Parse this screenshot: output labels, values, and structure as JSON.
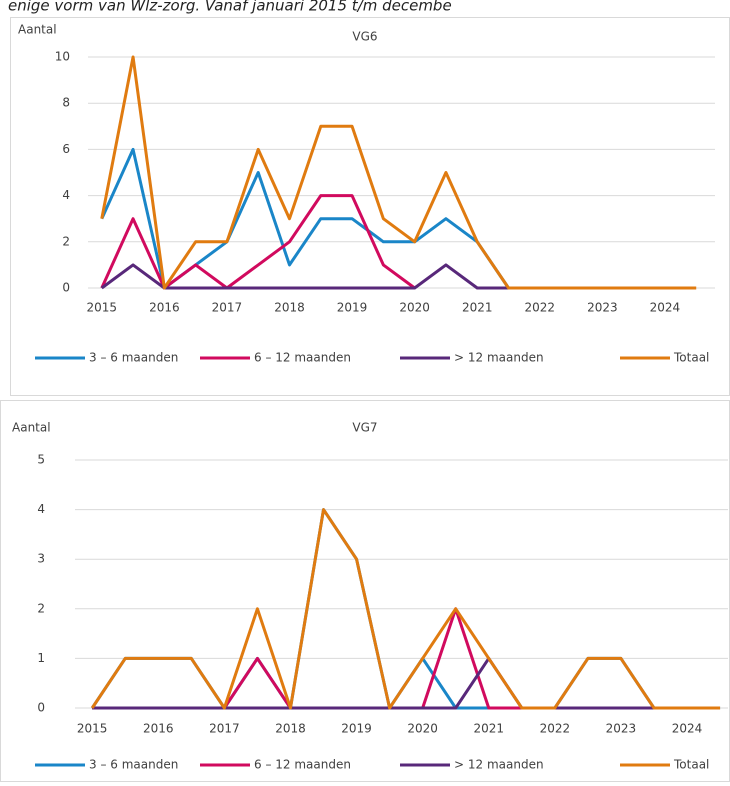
{
  "caption": "enige vorm van Wlz-zorg. Vanaf januari 2015 t/m decembe",
  "chart_data": [
    {
      "type": "line",
      "title": "VG6",
      "y_label": "Aantal",
      "x": [
        2015,
        2015.5,
        2016,
        2016.5,
        2017,
        2017.5,
        2018,
        2018.5,
        2019,
        2019.5,
        2020,
        2020.5,
        2021,
        2021.5,
        2022,
        2022.5,
        2023,
        2023.5,
        2024,
        2024.5
      ],
      "xlim": [
        2014.78,
        2024.8
      ],
      "xticks": [
        2015,
        2016,
        2017,
        2018,
        2019,
        2020,
        2021,
        2022,
        2023,
        2024
      ],
      "ylim": [
        0,
        10
      ],
      "yticks": [
        0,
        2,
        4,
        6,
        8,
        10
      ],
      "grid": true,
      "series": [
        {
          "name": "3 – 6 maanden",
          "color": "#1a86c8",
          "values": [
            3,
            6,
            0,
            1,
            2,
            5,
            1,
            3,
            3,
            2,
            2,
            3,
            2,
            0,
            null,
            null,
            null,
            null,
            null,
            null
          ]
        },
        {
          "name": "6 – 12 maanden",
          "color": "#d10a5e",
          "values": [
            0,
            3,
            0,
            1,
            0,
            1,
            2,
            4,
            4,
            1,
            0,
            null,
            null,
            null,
            null,
            null,
            null,
            null,
            null,
            null
          ]
        },
        {
          "name": "> 12 maanden",
          "color": "#58287a",
          "values": [
            0,
            1,
            0,
            0,
            0,
            0,
            0,
            0,
            0,
            0,
            0,
            1,
            0,
            0,
            null,
            null,
            null,
            null,
            null,
            null
          ]
        },
        {
          "name": "Totaal",
          "color": "#e07b10",
          "values": [
            3,
            10,
            0,
            2,
            2,
            6,
            3,
            7,
            7,
            3,
            2,
            5,
            2,
            0,
            0,
            0,
            0,
            0,
            0,
            0
          ]
        }
      ]
    },
    {
      "type": "line",
      "title": "VG7",
      "y_label": "Aantal",
      "x": [
        2015,
        2015.5,
        2016,
        2016.5,
        2017,
        2017.5,
        2018,
        2018.5,
        2019,
        2019.5,
        2020,
        2020.5,
        2021,
        2021.5,
        2022,
        2022.5,
        2023,
        2023.5,
        2024,
        2024.5
      ],
      "xlim": [
        2014.74,
        2024.62
      ],
      "xticks": [
        2015,
        2016,
        2017,
        2018,
        2019,
        2020,
        2021,
        2022,
        2023,
        2024
      ],
      "ylim": [
        0,
        5
      ],
      "yticks": [
        0,
        1,
        2,
        3,
        4,
        5
      ],
      "grid": true,
      "series": [
        {
          "name": "3 – 6 maanden",
          "color": "#1a86c8",
          "values": [
            0,
            1,
            1,
            1,
            0,
            1,
            0,
            4,
            3,
            0,
            1,
            0,
            0,
            0,
            0,
            1,
            1,
            0,
            0,
            0
          ]
        },
        {
          "name": "6 – 12 maanden",
          "color": "#d10a5e",
          "values": [
            0,
            0,
            0,
            0,
            0,
            1,
            0,
            0,
            0,
            0,
            0,
            2,
            0,
            0,
            null,
            null,
            null,
            null,
            null,
            null
          ]
        },
        {
          "name": "> 12 maanden",
          "color": "#58287a",
          "values": [
            0,
            0,
            0,
            0,
            0,
            0,
            0,
            0,
            0,
            0,
            0,
            0,
            1,
            0,
            0,
            0,
            0,
            0,
            null,
            null
          ]
        },
        {
          "name": "Totaal",
          "color": "#e07b10",
          "values": [
            0,
            1,
            1,
            1,
            0,
            2,
            0,
            4,
            3,
            0,
            1,
            2,
            1,
            0,
            0,
            1,
            1,
            0,
            0,
            0
          ]
        }
      ]
    }
  ]
}
